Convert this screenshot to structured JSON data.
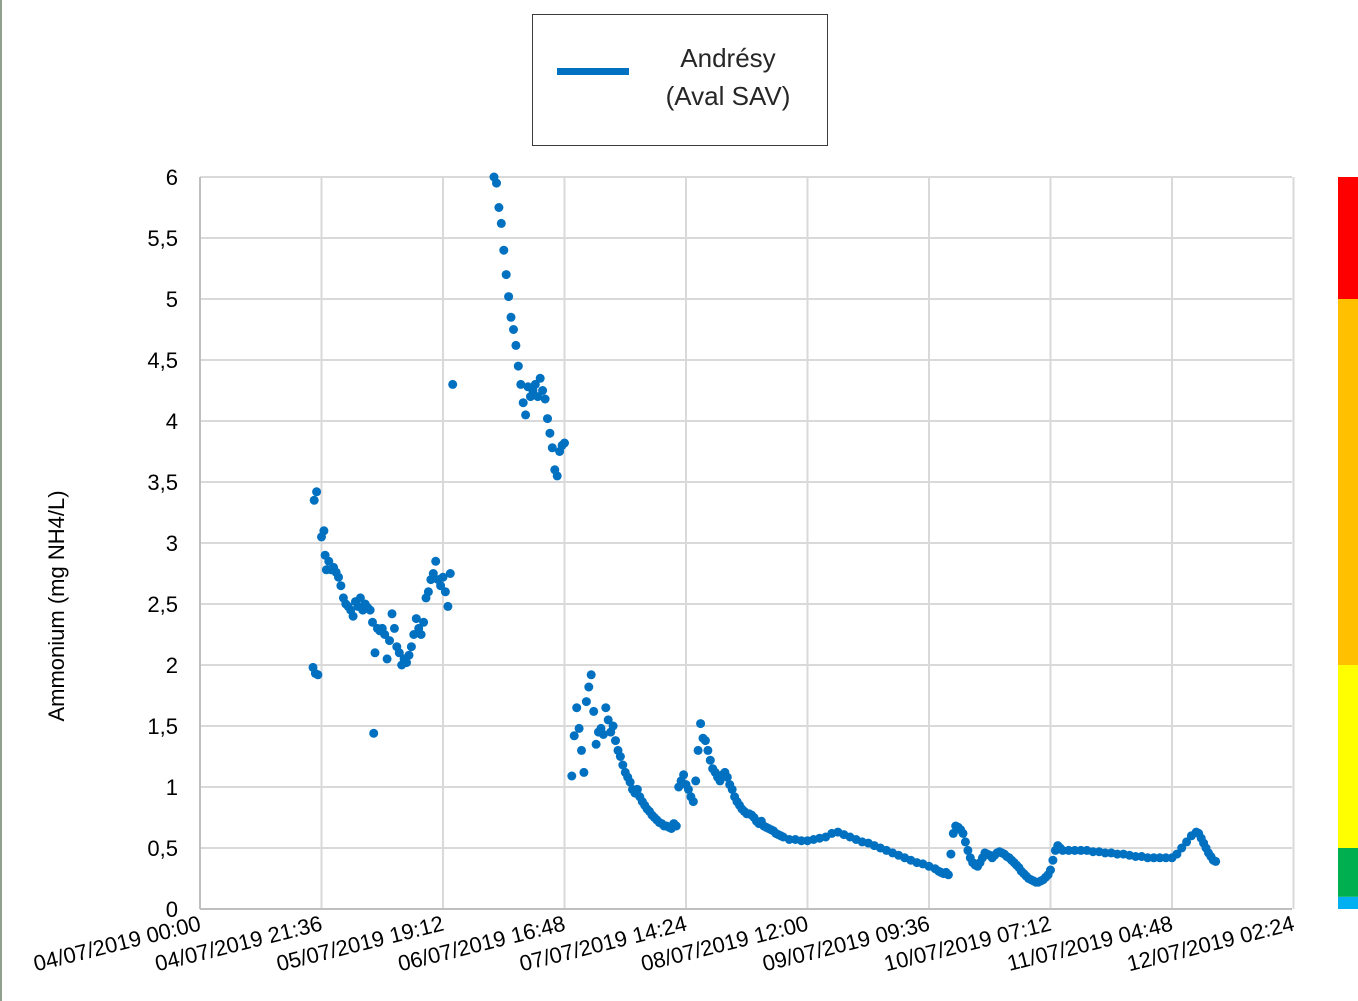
{
  "chart_data": {
    "type": "scatter",
    "series": [
      {
        "name": "Andrésy (Aval SAV)",
        "color": "#0070c0",
        "points": [
          [
            0.93,
            1.98
          ],
          [
            0.95,
            1.93
          ],
          [
            0.97,
            1.92
          ],
          [
            0.94,
            3.35
          ],
          [
            0.96,
            3.42
          ],
          [
            1.0,
            3.05
          ],
          [
            1.02,
            3.1
          ],
          [
            1.03,
            2.9
          ],
          [
            1.04,
            2.78
          ],
          [
            1.06,
            2.85
          ],
          [
            1.08,
            2.78
          ],
          [
            1.1,
            2.8
          ],
          [
            1.12,
            2.76
          ],
          [
            1.14,
            2.72
          ],
          [
            1.16,
            2.65
          ],
          [
            1.18,
            2.55
          ],
          [
            1.2,
            2.5
          ],
          [
            1.22,
            2.48
          ],
          [
            1.24,
            2.45
          ],
          [
            1.26,
            2.4
          ],
          [
            1.28,
            2.52
          ],
          [
            1.3,
            2.48
          ],
          [
            1.32,
            2.55
          ],
          [
            1.34,
            2.45
          ],
          [
            1.36,
            2.5
          ],
          [
            1.38,
            2.47
          ],
          [
            1.4,
            2.45
          ],
          [
            1.42,
            2.35
          ],
          [
            1.43,
            1.44
          ],
          [
            1.44,
            2.1
          ],
          [
            1.46,
            2.3
          ],
          [
            1.48,
            2.28
          ],
          [
            1.5,
            2.3
          ],
          [
            1.52,
            2.25
          ],
          [
            1.54,
            2.05
          ],
          [
            1.56,
            2.2
          ],
          [
            1.58,
            2.42
          ],
          [
            1.6,
            2.3
          ],
          [
            1.62,
            2.15
          ],
          [
            1.64,
            2.1
          ],
          [
            1.66,
            2.0
          ],
          [
            1.68,
            2.05
          ],
          [
            1.7,
            2.02
          ],
          [
            1.72,
            2.08
          ],
          [
            1.74,
            2.15
          ],
          [
            1.76,
            2.25
          ],
          [
            1.78,
            2.38
          ],
          [
            1.8,
            2.3
          ],
          [
            1.82,
            2.25
          ],
          [
            1.84,
            2.35
          ],
          [
            1.86,
            2.55
          ],
          [
            1.88,
            2.6
          ],
          [
            1.9,
            2.7
          ],
          [
            1.92,
            2.75
          ],
          [
            1.94,
            2.85
          ],
          [
            1.96,
            2.7
          ],
          [
            1.98,
            2.65
          ],
          [
            2.0,
            2.72
          ],
          [
            2.02,
            2.6
          ],
          [
            2.04,
            2.48
          ],
          [
            2.06,
            2.75
          ],
          [
            2.08,
            4.3
          ],
          [
            2.42,
            6.0
          ],
          [
            2.44,
            5.95
          ],
          [
            2.46,
            5.75
          ],
          [
            2.48,
            5.62
          ],
          [
            2.5,
            5.4
          ],
          [
            2.52,
            5.2
          ],
          [
            2.54,
            5.02
          ],
          [
            2.56,
            4.85
          ],
          [
            2.58,
            4.75
          ],
          [
            2.6,
            4.62
          ],
          [
            2.62,
            4.45
          ],
          [
            2.64,
            4.3
          ],
          [
            2.66,
            4.15
          ],
          [
            2.68,
            4.05
          ],
          [
            2.7,
            4.28
          ],
          [
            2.72,
            4.2
          ],
          [
            2.74,
            4.25
          ],
          [
            2.76,
            4.3
          ],
          [
            2.78,
            4.2
          ],
          [
            2.8,
            4.35
          ],
          [
            2.82,
            4.25
          ],
          [
            2.84,
            4.18
          ],
          [
            2.86,
            4.02
          ],
          [
            2.88,
            3.9
          ],
          [
            2.9,
            3.78
          ],
          [
            2.92,
            3.6
          ],
          [
            2.94,
            3.55
          ],
          [
            2.96,
            3.75
          ],
          [
            2.98,
            3.8
          ],
          [
            3.0,
            3.82
          ],
          [
            3.06,
            1.09
          ],
          [
            3.08,
            1.42
          ],
          [
            3.1,
            1.65
          ],
          [
            3.12,
            1.48
          ],
          [
            3.14,
            1.3
          ],
          [
            3.16,
            1.12
          ],
          [
            3.18,
            1.7
          ],
          [
            3.2,
            1.82
          ],
          [
            3.22,
            1.92
          ],
          [
            3.24,
            1.62
          ],
          [
            3.26,
            1.35
          ],
          [
            3.28,
            1.45
          ],
          [
            3.3,
            1.48
          ],
          [
            3.32,
            1.43
          ],
          [
            3.34,
            1.65
          ],
          [
            3.36,
            1.55
          ],
          [
            3.38,
            1.45
          ],
          [
            3.4,
            1.5
          ],
          [
            3.42,
            1.38
          ],
          [
            3.44,
            1.3
          ],
          [
            3.46,
            1.25
          ],
          [
            3.48,
            1.18
          ],
          [
            3.5,
            1.12
          ],
          [
            3.52,
            1.08
          ],
          [
            3.54,
            1.04
          ],
          [
            3.56,
            0.98
          ],
          [
            3.58,
            0.95
          ],
          [
            3.6,
            0.98
          ],
          [
            3.62,
            0.92
          ],
          [
            3.64,
            0.88
          ],
          [
            3.66,
            0.85
          ],
          [
            3.68,
            0.82
          ],
          [
            3.7,
            0.8
          ],
          [
            3.72,
            0.77
          ],
          [
            3.74,
            0.75
          ],
          [
            3.76,
            0.73
          ],
          [
            3.78,
            0.71
          ],
          [
            3.8,
            0.7
          ],
          [
            3.82,
            0.68
          ],
          [
            3.84,
            0.68
          ],
          [
            3.86,
            0.67
          ],
          [
            3.88,
            0.66
          ],
          [
            3.9,
            0.7
          ],
          [
            3.92,
            0.68
          ],
          [
            3.94,
            1.0
          ],
          [
            3.96,
            1.05
          ],
          [
            3.98,
            1.1
          ],
          [
            4.0,
            1.02
          ],
          [
            4.02,
            0.98
          ],
          [
            4.04,
            0.92
          ],
          [
            4.06,
            0.88
          ],
          [
            4.08,
            1.05
          ],
          [
            4.1,
            1.3
          ],
          [
            4.12,
            1.52
          ],
          [
            4.14,
            1.4
          ],
          [
            4.16,
            1.38
          ],
          [
            4.18,
            1.3
          ],
          [
            4.2,
            1.22
          ],
          [
            4.22,
            1.15
          ],
          [
            4.24,
            1.12
          ],
          [
            4.26,
            1.08
          ],
          [
            4.28,
            1.05
          ],
          [
            4.3,
            1.1
          ],
          [
            4.32,
            1.12
          ],
          [
            4.34,
            1.08
          ],
          [
            4.36,
            1.02
          ],
          [
            4.38,
            0.98
          ],
          [
            4.4,
            0.92
          ],
          [
            4.42,
            0.88
          ],
          [
            4.44,
            0.85
          ],
          [
            4.46,
            0.82
          ],
          [
            4.48,
            0.8
          ],
          [
            4.5,
            0.78
          ],
          [
            4.52,
            0.78
          ],
          [
            4.54,
            0.77
          ],
          [
            4.56,
            0.75
          ],
          [
            4.58,
            0.72
          ],
          [
            4.6,
            0.7
          ],
          [
            4.62,
            0.72
          ],
          [
            4.64,
            0.68
          ],
          [
            4.66,
            0.67
          ],
          [
            4.68,
            0.66
          ],
          [
            4.7,
            0.65
          ],
          [
            4.72,
            0.64
          ],
          [
            4.74,
            0.62
          ],
          [
            4.76,
            0.61
          ],
          [
            4.78,
            0.6
          ],
          [
            4.8,
            0.59
          ],
          [
            4.85,
            0.57
          ],
          [
            4.9,
            0.57
          ],
          [
            4.95,
            0.56
          ],
          [
            5.0,
            0.56
          ],
          [
            5.05,
            0.57
          ],
          [
            5.1,
            0.58
          ],
          [
            5.15,
            0.59
          ],
          [
            5.2,
            0.62
          ],
          [
            5.25,
            0.63
          ],
          [
            5.3,
            0.61
          ],
          [
            5.35,
            0.59
          ],
          [
            5.4,
            0.57
          ],
          [
            5.45,
            0.55
          ],
          [
            5.5,
            0.54
          ],
          [
            5.55,
            0.52
          ],
          [
            5.6,
            0.5
          ],
          [
            5.65,
            0.48
          ],
          [
            5.7,
            0.46
          ],
          [
            5.75,
            0.44
          ],
          [
            5.8,
            0.42
          ],
          [
            5.85,
            0.4
          ],
          [
            5.9,
            0.38
          ],
          [
            5.95,
            0.37
          ],
          [
            6.0,
            0.35
          ],
          [
            6.05,
            0.33
          ],
          [
            6.08,
            0.31
          ],
          [
            6.1,
            0.3
          ],
          [
            6.12,
            0.29
          ],
          [
            6.14,
            0.3
          ],
          [
            6.16,
            0.28
          ],
          [
            6.18,
            0.45
          ],
          [
            6.2,
            0.62
          ],
          [
            6.22,
            0.68
          ],
          [
            6.24,
            0.67
          ],
          [
            6.26,
            0.65
          ],
          [
            6.28,
            0.62
          ],
          [
            6.3,
            0.55
          ],
          [
            6.32,
            0.48
          ],
          [
            6.34,
            0.42
          ],
          [
            6.36,
            0.38
          ],
          [
            6.38,
            0.36
          ],
          [
            6.4,
            0.35
          ],
          [
            6.42,
            0.38
          ],
          [
            6.44,
            0.42
          ],
          [
            6.46,
            0.46
          ],
          [
            6.48,
            0.45
          ],
          [
            6.5,
            0.44
          ],
          [
            6.52,
            0.42
          ],
          [
            6.54,
            0.44
          ],
          [
            6.56,
            0.46
          ],
          [
            6.58,
            0.47
          ],
          [
            6.6,
            0.46
          ],
          [
            6.62,
            0.45
          ],
          [
            6.64,
            0.43
          ],
          [
            6.66,
            0.42
          ],
          [
            6.68,
            0.4
          ],
          [
            6.7,
            0.38
          ],
          [
            6.72,
            0.36
          ],
          [
            6.74,
            0.34
          ],
          [
            6.76,
            0.31
          ],
          [
            6.78,
            0.29
          ],
          [
            6.8,
            0.27
          ],
          [
            6.82,
            0.25
          ],
          [
            6.84,
            0.24
          ],
          [
            6.86,
            0.23
          ],
          [
            6.88,
            0.22
          ],
          [
            6.9,
            0.22
          ],
          [
            6.92,
            0.23
          ],
          [
            6.94,
            0.24
          ],
          [
            6.96,
            0.26
          ],
          [
            6.98,
            0.28
          ],
          [
            7.0,
            0.32
          ],
          [
            7.02,
            0.4
          ],
          [
            7.04,
            0.48
          ],
          [
            7.06,
            0.52
          ],
          [
            7.08,
            0.5
          ],
          [
            7.1,
            0.48
          ],
          [
            7.15,
            0.48
          ],
          [
            7.2,
            0.48
          ],
          [
            7.25,
            0.48
          ],
          [
            7.3,
            0.48
          ],
          [
            7.35,
            0.47
          ],
          [
            7.4,
            0.47
          ],
          [
            7.45,
            0.46
          ],
          [
            7.5,
            0.46
          ],
          [
            7.55,
            0.45
          ],
          [
            7.6,
            0.45
          ],
          [
            7.65,
            0.44
          ],
          [
            7.7,
            0.43
          ],
          [
            7.75,
            0.43
          ],
          [
            7.8,
            0.42
          ],
          [
            7.85,
            0.42
          ],
          [
            7.9,
            0.42
          ],
          [
            7.95,
            0.42
          ],
          [
            8.0,
            0.42
          ],
          [
            8.04,
            0.45
          ],
          [
            8.08,
            0.5
          ],
          [
            8.12,
            0.55
          ],
          [
            8.16,
            0.6
          ],
          [
            8.2,
            0.63
          ],
          [
            8.22,
            0.62
          ],
          [
            8.24,
            0.58
          ],
          [
            8.26,
            0.54
          ],
          [
            8.28,
            0.5
          ],
          [
            8.3,
            0.46
          ],
          [
            8.32,
            0.43
          ],
          [
            8.34,
            0.4
          ],
          [
            8.36,
            0.39
          ]
        ]
      }
    ],
    "x_tick_labels": [
      "04/07/2019 00:00",
      "04/07/2019 21:36",
      "05/07/2019 19:12",
      "06/07/2019 16:48",
      "07/07/2019 14:24",
      "08/07/2019 12:00",
      "09/07/2019 09:36",
      "10/07/2019 07:12",
      "11/07/2019 04:48",
      "12/07/2019 02:24"
    ],
    "y_tick_labels": [
      "0",
      "0,5",
      "1",
      "1,5",
      "2",
      "2,5",
      "3",
      "3,5",
      "4",
      "4,5",
      "5",
      "5,5",
      "6"
    ],
    "ylabel": "Ammonium (mg NH4/L)",
    "xlabel": "",
    "ylim": [
      0,
      6
    ],
    "xlim": [
      0,
      9.5
    ],
    "grid": true,
    "legend": {
      "placement": "top-center",
      "label_line1": "Andrésy",
      "label_line2": "(Aval SAV)"
    },
    "quality_scale": [
      {
        "from": 0,
        "to": 0.1,
        "color": "#00b0f0"
      },
      {
        "from": 0.1,
        "to": 0.5,
        "color": "#00b050"
      },
      {
        "from": 0.5,
        "to": 2,
        "color": "#ffff00"
      },
      {
        "from": 2,
        "to": 5,
        "color": "#ffc000"
      },
      {
        "from": 5,
        "to": 6,
        "color": "#ff0000"
      }
    ]
  }
}
